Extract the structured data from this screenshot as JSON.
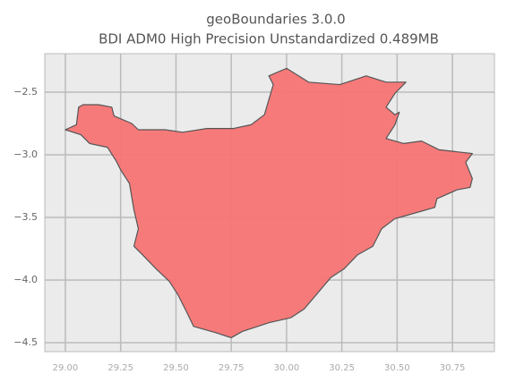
{
  "chart_data": {
    "type": "map",
    "title": "geoBoundaries 3.0.0",
    "subtitle": "BDI ADM0 High Precision Unstandardized 0.489MB",
    "color": "#f77474",
    "edge_color": "#555555",
    "grid": true,
    "xlim": [
      28.907,
      30.94
    ],
    "ylim": [
      -4.571,
      -2.193
    ],
    "xticks": [
      {
        "value": 29.0,
        "label": "29.00"
      },
      {
        "value": 29.25,
        "label": "29.25"
      },
      {
        "value": 29.5,
        "label": "29.50"
      },
      {
        "value": 29.75,
        "label": "29.75"
      },
      {
        "value": 30.0,
        "label": "30.00"
      },
      {
        "value": 30.25,
        "label": "30.25"
      },
      {
        "value": 30.5,
        "label": "30.50"
      },
      {
        "value": 30.75,
        "label": "30.75"
      }
    ],
    "yticks": [
      {
        "value": -2.5,
        "label": "−2.5"
      },
      {
        "value": -3.0,
        "label": "−3.0"
      },
      {
        "value": -3.5,
        "label": "−3.5"
      },
      {
        "value": -4.0,
        "label": "−4.0"
      },
      {
        "value": -4.5,
        "label": "−4.5"
      }
    ],
    "x": [
      29.0,
      29.05,
      29.06,
      29.08,
      29.15,
      29.21,
      29.22,
      29.3,
      29.33,
      29.37,
      29.45,
      29.53,
      29.64,
      29.76,
      29.84,
      29.9,
      29.92,
      29.94,
      29.92,
      30.0,
      30.1,
      30.24,
      30.36,
      30.45,
      30.54,
      30.49,
      30.45,
      30.49,
      30.51,
      30.49,
      30.45,
      30.53,
      30.61,
      30.69,
      30.79,
      30.84,
      30.81,
      30.84,
      30.83,
      30.77,
      30.68,
      30.67,
      30.53,
      30.49,
      30.43,
      30.39,
      30.32,
      30.26,
      30.2,
      30.08,
      30.02,
      29.92,
      29.8,
      29.75,
      29.68,
      29.58,
      29.55,
      29.51,
      29.47,
      29.41,
      29.35,
      29.31,
      29.33,
      29.31,
      29.29,
      29.25,
      29.23,
      29.19,
      29.11,
      29.07
    ],
    "y": [
      -2.8,
      -2.76,
      -2.62,
      -2.6,
      -2.6,
      -2.62,
      -2.69,
      -2.75,
      -2.8,
      -2.8,
      -2.8,
      -2.82,
      -2.79,
      -2.79,
      -2.76,
      -2.68,
      -2.56,
      -2.44,
      -2.37,
      -2.31,
      -2.42,
      -2.44,
      -2.37,
      -2.42,
      -2.42,
      -2.51,
      -2.62,
      -2.68,
      -2.66,
      -2.76,
      -2.87,
      -2.91,
      -2.89,
      -2.96,
      -2.98,
      -2.99,
      -3.06,
      -3.19,
      -3.26,
      -3.28,
      -3.35,
      -3.42,
      -3.49,
      -3.51,
      -3.59,
      -3.73,
      -3.8,
      -3.91,
      -3.98,
      -4.23,
      -4.3,
      -4.34,
      -4.41,
      -4.46,
      -4.42,
      -4.37,
      -4.26,
      -4.12,
      -4.01,
      -3.91,
      -3.8,
      -3.73,
      -3.59,
      -3.44,
      -3.23,
      -3.12,
      -3.05,
      -2.94,
      -2.91,
      -2.84
    ]
  }
}
